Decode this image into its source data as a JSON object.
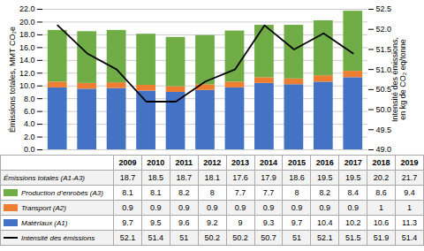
{
  "chart_data": {
    "type": "bar",
    "stacked": true,
    "categories": [
      "2009",
      "2010",
      "2011",
      "2012",
      "2013",
      "2014",
      "2015",
      "2016",
      "2017",
      "2018",
      "2019"
    ],
    "series": [
      {
        "name": "Matériaux (A1)",
        "color": "#4472C4",
        "values": [
          9.7,
          9.5,
          9.6,
          9.2,
          9.0,
          9.3,
          9.7,
          10.4,
          10.2,
          10.6,
          11.3
        ]
      },
      {
        "name": "Transport (A2)",
        "color": "#ED7D31",
        "values": [
          0.9,
          0.9,
          0.9,
          0.9,
          0.9,
          0.9,
          0.9,
          0.9,
          0.9,
          1.0,
          1.0
        ]
      },
      {
        "name": "Production d’enrobés (A3)",
        "color": "#70AD47",
        "values": [
          8.1,
          8.1,
          8.2,
          8.0,
          7.7,
          7.7,
          8.0,
          8.2,
          8.4,
          8.6,
          9.4
        ]
      },
      {
        "name": "Intensité des émissions",
        "type": "line",
        "axis": "y2",
        "color": "#000000",
        "values": [
          52.1,
          51.4,
          51.0,
          50.2,
          50.2,
          50.7,
          51.0,
          52.1,
          51.5,
          51.9,
          51.4
        ]
      }
    ],
    "ylabel": "Émissions totales, MMT CO₂e",
    "y2label": "Intensité des émissions,\nen kg de CO₂ eq/tonne",
    "ylim": [
      0.0,
      22.0
    ],
    "yticks": [
      {
        "value": 0,
        "label": "0.0"
      },
      {
        "value": 2,
        "label": "2.0"
      },
      {
        "value": 4,
        "label": "4.0"
      },
      {
        "value": 6,
        "label": "6.0"
      },
      {
        "value": 8,
        "label": "8.0"
      },
      {
        "value": 10,
        "label": "10.0"
      },
      {
        "value": 12,
        "label": "12.0"
      },
      {
        "value": 14,
        "label": "14.0"
      },
      {
        "value": 16,
        "label": "16.0"
      },
      {
        "value": 18,
        "label": "18.0"
      },
      {
        "value": 20,
        "label": "20.0"
      },
      {
        "value": 22,
        "label": "22.0"
      }
    ],
    "y2lim": [
      49.0,
      52.5
    ],
    "y2ticks": [
      {
        "value": 49,
        "label": "49.0"
      },
      49.5,
      {
        "value": 50,
        "label": "50.0"
      },
      50.5,
      {
        "value": 51,
        "label": "51.0"
      },
      51.5,
      {
        "value": 52,
        "label": "52.0"
      },
      52.5
    ],
    "grid": true,
    "tick_labels": "y",
    "table": [
      {
        "name": "Émissions totales (A1-A3)",
        "values": [
          18.7,
          18.5,
          18.7,
          18.1,
          17.6,
          17.9,
          18.6,
          19.5,
          19.5,
          20.2,
          21.7
        ]
      },
      {
        "name": "Production d’enrobés (A3)",
        "values": [
          8.1,
          8.1,
          8.2,
          8.0,
          7.7,
          7.7,
          8.0,
          8.2,
          8.4,
          8.6,
          9.4
        ]
      },
      {
        "name": "Transport (A2)",
        "values": [
          0.9,
          0.9,
          0.9,
          0.9,
          0.9,
          0.9,
          0.9,
          0.9,
          0.9,
          1.0,
          1.0
        ]
      },
      {
        "name": "Matériaux (A1)",
        "values": [
          9.7,
          9.5,
          9.6,
          9.2,
          9.0,
          9.3,
          9.7,
          10.4,
          10.2,
          10.6,
          11.3
        ]
      },
      {
        "name": "Intensité des émissions",
        "values": [
          52.1,
          51.4,
          51.0,
          50.2,
          50.2,
          50.7,
          51.0,
          52.1,
          51.5,
          51.9,
          51.4
        ]
      }
    ]
  }
}
